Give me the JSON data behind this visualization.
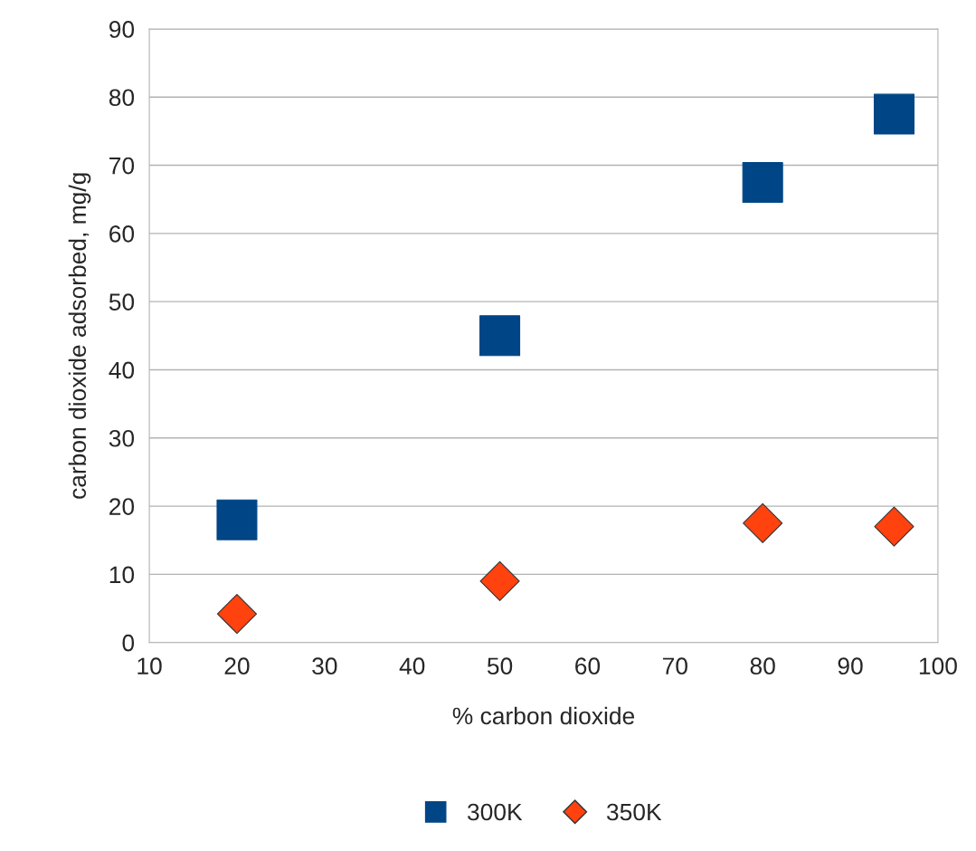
{
  "chart_data": {
    "type": "scatter",
    "xlabel": "% carbon dioxide",
    "ylabel": "carbon dioxide adsorbed, mg/g",
    "series": [
      {
        "name": "300K",
        "color": "#004586",
        "marker": "square",
        "x": [
          20,
          50,
          80,
          95
        ],
        "values": [
          18,
          45,
          67.5,
          77.5
        ]
      },
      {
        "name": "350K",
        "color": "#ff420e",
        "marker": "diamond",
        "x": [
          20,
          50,
          80,
          95
        ],
        "values": [
          4.2,
          9,
          17.5,
          17
        ]
      }
    ],
    "xlim": [
      10,
      100
    ],
    "xticks": [
      10,
      20,
      30,
      40,
      50,
      60,
      70,
      80,
      90,
      100
    ],
    "ylim": [
      0,
      90
    ],
    "yticks": [
      0,
      10,
      20,
      30,
      40,
      50,
      60,
      70,
      80,
      90
    ],
    "grid": "y",
    "legend": "bottom"
  }
}
